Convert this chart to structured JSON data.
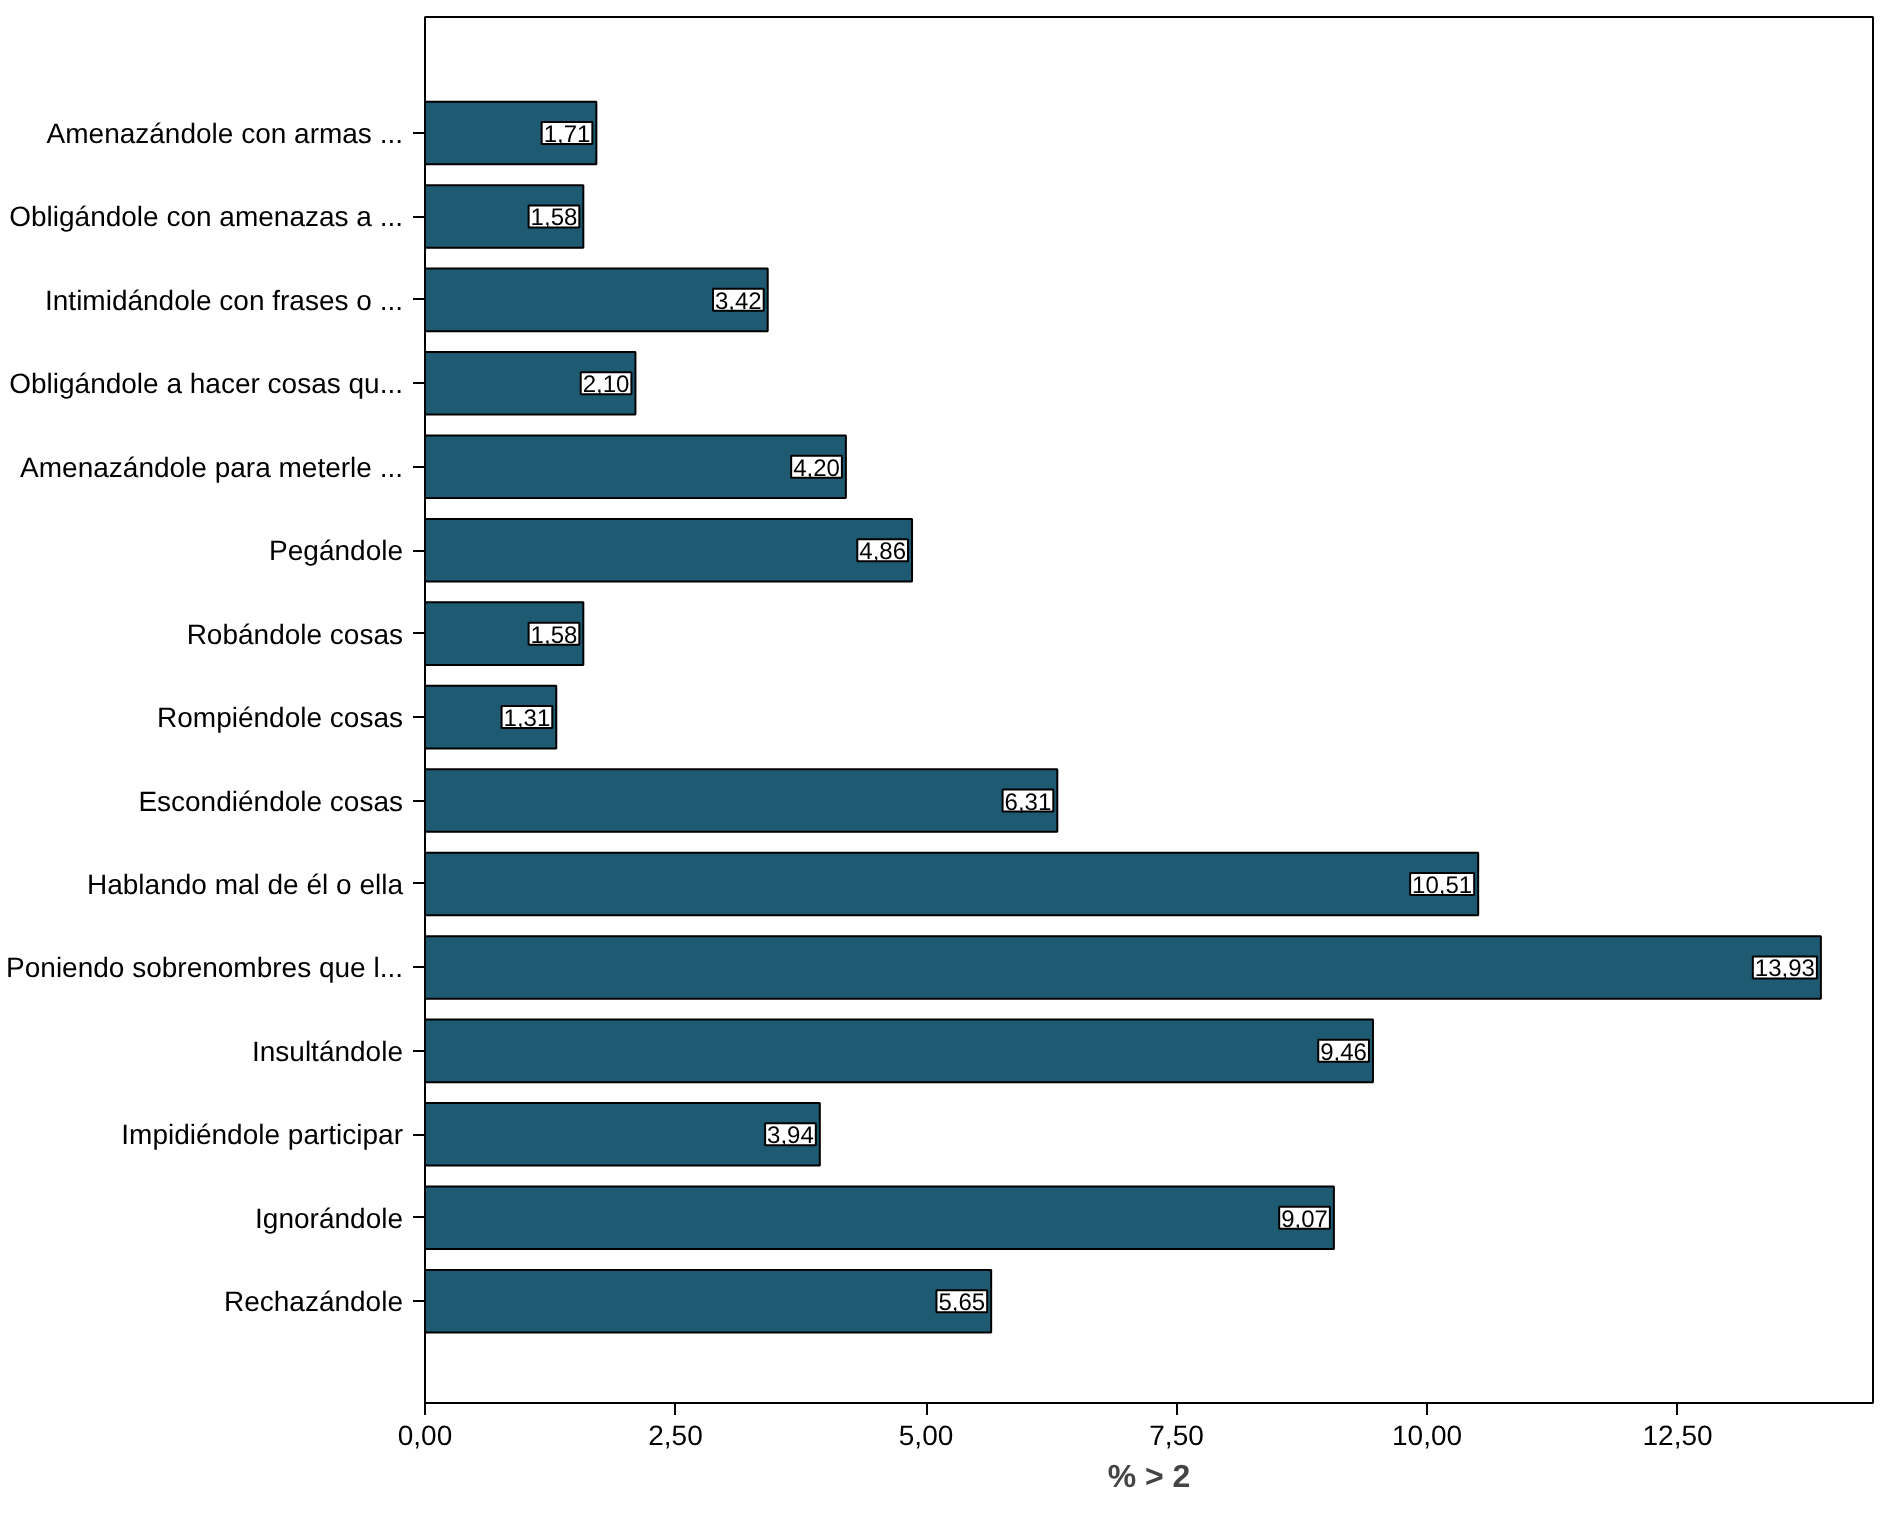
{
  "chart_data": {
    "type": "bar",
    "orientation": "horizontal",
    "xlabel": "% > 2",
    "categories": [
      "Amenazándole con armas ...",
      "Obligándole con amenazas a ...",
      "Intimidándole con frases o ...",
      "Obligándole a hacer cosas qu...",
      "Amenazándole para meterle ...",
      "Pegándole",
      "Robándole cosas",
      "Rompiéndole cosas",
      "Escondiéndole cosas",
      "Hablando mal de él o ella",
      "Poniendo sobrenombres que l...",
      "Insultándole",
      "Impidiéndole participar",
      "Ignorándole",
      "Rechazándole"
    ],
    "values": [
      1.71,
      1.58,
      3.42,
      2.1,
      4.2,
      4.86,
      1.58,
      1.31,
      6.31,
      10.51,
      13.93,
      9.46,
      3.94,
      9.07,
      5.65
    ],
    "value_labels": [
      "1,71",
      "1,58",
      "3,42",
      "2,10",
      "4,20",
      "4,86",
      "1,58",
      "1,31",
      "6,31",
      "10,51",
      "13,93",
      "9,46",
      "3,94",
      "9,07",
      "5,65"
    ],
    "color": "#1f5a73",
    "xlim": [
      0,
      14.45
    ],
    "xticks": [
      {
        "value": 0,
        "label": "0,00"
      },
      {
        "value": 2.5,
        "label": "2,50"
      },
      {
        "value": 5,
        "label": "5,00"
      },
      {
        "value": 7.5,
        "label": "7,50"
      },
      {
        "value": 10,
        "label": "10,00"
      },
      {
        "value": 12.5,
        "label": "12,50"
      }
    ],
    "grid": false
  }
}
